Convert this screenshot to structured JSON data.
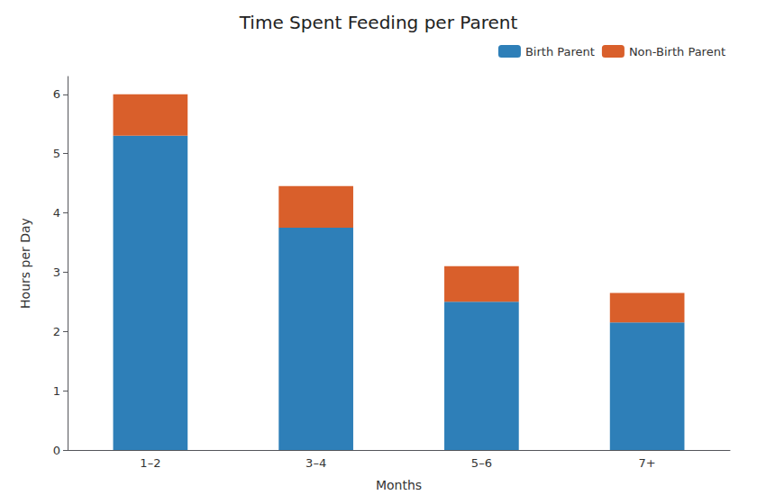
{
  "chart_data": {
    "type": "bar",
    "stacked": true,
    "title": "Time Spent Feeding per Parent",
    "xlabel": "Months",
    "ylabel": "Hours per Day",
    "categories": [
      "1–2",
      "3–4",
      "5–6",
      "7+"
    ],
    "series": [
      {
        "name": "Birth Parent",
        "color": "#2e7fb8",
        "values": [
          5.3,
          3.75,
          2.5,
          2.15
        ]
      },
      {
        "name": "Non-Birth Parent",
        "color": "#d95f2b",
        "values": [
          0.7,
          0.7,
          0.6,
          0.5
        ]
      }
    ],
    "ylim": [
      0,
      6.3
    ],
    "yticks": [
      0,
      1,
      2,
      3,
      4,
      5,
      6
    ],
    "grid": false,
    "legend": "upper right"
  }
}
